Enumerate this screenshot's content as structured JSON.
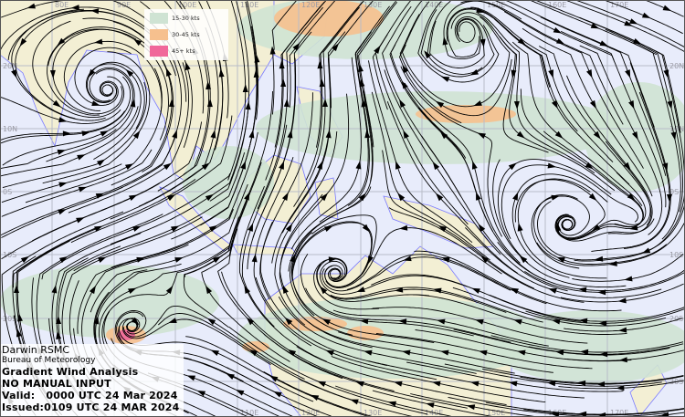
{
  "legend": {
    "items": [
      {
        "label": "15-30 kts",
        "color": "#cfe3d3"
      },
      {
        "label": "30-45 kts",
        "color": "#f6c08e"
      },
      {
        "label": "45+ kts",
        "color": "#f0679a"
      }
    ]
  },
  "info": {
    "centre": "Darwin RSMC",
    "agency": "Bureau of Meteorology",
    "product": "Gradient Wind Analysis",
    "note": "NO MANUAL INPUT",
    "valid": "Valid:   0000 UTC 24 Mar 2024",
    "issued": "Issued:0109 UTC 24 MAR 2024"
  },
  "axes": {
    "longitudes": [
      "80E",
      "90E",
      "100E",
      "110E",
      "120E",
      "130E",
      "140E",
      "150E",
      "160E",
      "170E"
    ],
    "latitudes": [
      "20N",
      "10N",
      "0S",
      "10S",
      "20S",
      "30S"
    ]
  },
  "colors": {
    "ocean": "#e8ecfb",
    "land": "#f3efd4",
    "coast": "#7a7aff",
    "streamline": "#000000"
  }
}
